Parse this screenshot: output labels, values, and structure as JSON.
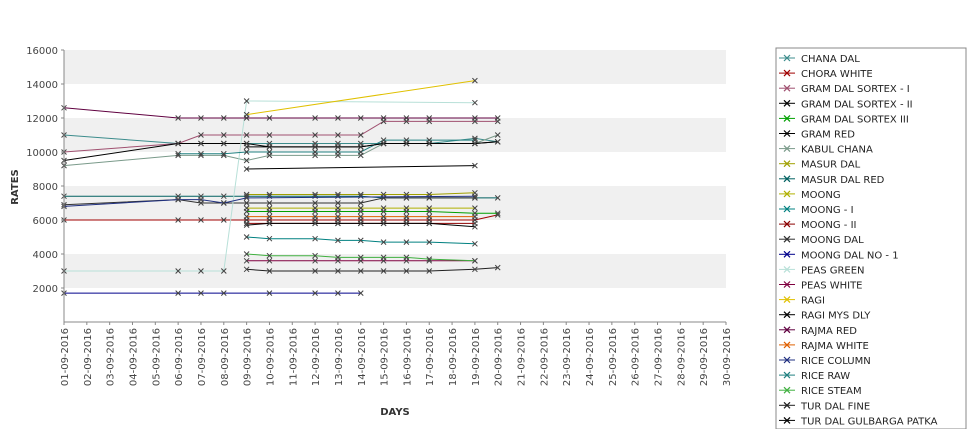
{
  "chart_data": {
    "type": "line",
    "xlabel": "DAYS",
    "ylabel": "RATES",
    "ylim": [
      0,
      16000
    ],
    "yticks": [
      2000,
      4000,
      6000,
      8000,
      10000,
      12000,
      14000,
      16000
    ],
    "grid": "horizontal alternating bands",
    "legend_position": "right",
    "x": [
      "01-09-2016",
      "02-09-2016",
      "03-09-2016",
      "04-09-2016",
      "05-09-2016",
      "06-09-2016",
      "07-09-2016",
      "08-09-2016",
      "09-09-2016",
      "10-09-2016",
      "11-09-2016",
      "12-09-2016",
      "13-09-2016",
      "14-09-2016",
      "15-09-2016",
      "16-09-2016",
      "17-09-2016",
      "18-09-2016",
      "19-09-2016",
      "20-09-2016",
      "21-09-2016",
      "22-09-2016",
      "23-09-2016",
      "24-09-2016",
      "25-09-2016",
      "26-09-2016",
      "27-09-2016",
      "28-09-2016",
      "29-09-2016",
      "30-09-2016"
    ],
    "series": [
      {
        "name": "CHANA DAL",
        "color": "#3c8c8c",
        "points": [
          [
            0,
            11000
          ],
          [
            5,
            10500
          ],
          [
            6,
            10500
          ],
          [
            7,
            10500
          ],
          [
            8,
            10500
          ],
          [
            9,
            10500
          ],
          [
            11,
            10500
          ],
          [
            12,
            10500
          ],
          [
            13,
            10500
          ],
          [
            14,
            10500
          ],
          [
            15,
            10500
          ],
          [
            16,
            10500
          ],
          [
            18,
            10800
          ],
          [
            19,
            10600
          ]
        ]
      },
      {
        "name": "CHORA WHITE",
        "color": "#a00000",
        "points": [
          [
            0,
            6000
          ],
          [
            5,
            6000
          ],
          [
            6,
            6000
          ],
          [
            7,
            6000
          ],
          [
            8,
            6000
          ],
          [
            9,
            6000
          ],
          [
            11,
            6000
          ],
          [
            12,
            6000
          ],
          [
            13,
            6000
          ],
          [
            14,
            6000
          ],
          [
            15,
            6000
          ],
          [
            16,
            6000
          ],
          [
            18,
            6000
          ],
          [
            19,
            6300
          ]
        ]
      },
      {
        "name": "GRAM DAL SORTEX  - I",
        "color": "#a05070",
        "points": [
          [
            0,
            10000
          ],
          [
            5,
            10500
          ],
          [
            6,
            11000
          ],
          [
            7,
            11000
          ],
          [
            8,
            11000
          ],
          [
            9,
            11000
          ],
          [
            11,
            11000
          ],
          [
            12,
            11000
          ],
          [
            13,
            11000
          ],
          [
            14,
            11800
          ],
          [
            15,
            11800
          ],
          [
            16,
            11800
          ],
          [
            18,
            11800
          ],
          [
            19,
            11800
          ]
        ]
      },
      {
        "name": "GRAM DAL SORTEX - II",
        "color": "#000000",
        "points": [
          [
            0,
            9500
          ],
          [
            5,
            10500
          ],
          [
            6,
            10500
          ],
          [
            7,
            10500
          ],
          [
            8,
            10500
          ],
          [
            9,
            10300
          ],
          [
            11,
            10300
          ],
          [
            12,
            10300
          ],
          [
            13,
            10300
          ],
          [
            14,
            10500
          ],
          [
            15,
            10500
          ],
          [
            16,
            10500
          ],
          [
            18,
            10500
          ],
          [
            19,
            10600
          ]
        ]
      },
      {
        "name": "GRAM DAL SORTEX III",
        "color": "#00a000",
        "points": [
          [
            8,
            6500
          ],
          [
            9,
            6500
          ],
          [
            11,
            6500
          ],
          [
            12,
            6500
          ],
          [
            13,
            6500
          ],
          [
            14,
            6500
          ],
          [
            15,
            6500
          ],
          [
            16,
            6500
          ],
          [
            18,
            6400
          ],
          [
            19,
            6400
          ]
        ]
      },
      {
        "name": "GRAM RED",
        "color": "#000000",
        "points": [
          [
            8,
            9000
          ],
          [
            18,
            9200
          ]
        ]
      },
      {
        "name": "KABUL CHANA",
        "color": "#7a9a8a",
        "points": [
          [
            0,
            9200
          ],
          [
            5,
            9800
          ],
          [
            6,
            9800
          ],
          [
            7,
            9800
          ],
          [
            8,
            9500
          ],
          [
            9,
            9800
          ],
          [
            11,
            9800
          ],
          [
            12,
            9800
          ],
          [
            13,
            9800
          ],
          [
            14,
            10500
          ],
          [
            15,
            10500
          ],
          [
            16,
            10500
          ],
          [
            18,
            10500
          ],
          [
            19,
            11000
          ]
        ]
      },
      {
        "name": "MASUR DAL",
        "color": "#a0a000",
        "points": [
          [
            8,
            7500
          ],
          [
            9,
            7500
          ],
          [
            11,
            7500
          ],
          [
            12,
            7500
          ],
          [
            13,
            7500
          ],
          [
            14,
            7500
          ],
          [
            15,
            7500
          ],
          [
            16,
            7500
          ],
          [
            18,
            7600
          ]
        ]
      },
      {
        "name": "MASUR DAL RED",
        "color": "#006060",
        "points": [
          [
            0,
            7400
          ],
          [
            5,
            7400
          ],
          [
            6,
            7400
          ],
          [
            7,
            7400
          ],
          [
            8,
            7400
          ],
          [
            9,
            7400
          ],
          [
            11,
            7400
          ],
          [
            12,
            7400
          ],
          [
            13,
            7400
          ],
          [
            14,
            7300
          ],
          [
            15,
            7300
          ],
          [
            16,
            7300
          ],
          [
            18,
            7300
          ],
          [
            19,
            7300
          ]
        ]
      },
      {
        "name": "MOONG",
        "color": "#b0b000",
        "points": [
          [
            8,
            6700
          ],
          [
            9,
            6700
          ],
          [
            11,
            6700
          ],
          [
            12,
            6700
          ],
          [
            13,
            6700
          ],
          [
            14,
            6700
          ],
          [
            15,
            6700
          ],
          [
            16,
            6700
          ],
          [
            18,
            6700
          ]
        ]
      },
      {
        "name": "MOONG - I",
        "color": "#008080",
        "points": [
          [
            8,
            5000
          ],
          [
            9,
            4900
          ],
          [
            11,
            4900
          ],
          [
            12,
            4800
          ],
          [
            13,
            4800
          ],
          [
            14,
            4700
          ],
          [
            15,
            4700
          ],
          [
            16,
            4700
          ],
          [
            18,
            4600
          ]
        ]
      },
      {
        "name": "MOONG - II",
        "color": "#8b0000",
        "points": [
          [
            8,
            5800
          ],
          [
            9,
            5800
          ],
          [
            11,
            5800
          ],
          [
            12,
            5800
          ],
          [
            13,
            5800
          ],
          [
            14,
            5800
          ],
          [
            15,
            5800
          ],
          [
            16,
            5800
          ],
          [
            18,
            5800
          ]
        ]
      },
      {
        "name": "MOONG DAL",
        "color": "#303030",
        "points": [
          [
            0,
            6900
          ],
          [
            5,
            7200
          ],
          [
            6,
            7000
          ],
          [
            7,
            7000
          ],
          [
            8,
            7000
          ],
          [
            9,
            7000
          ],
          [
            11,
            7000
          ],
          [
            12,
            7000
          ],
          [
            13,
            7000
          ],
          [
            14,
            7300
          ],
          [
            15,
            7300
          ],
          [
            16,
            7300
          ],
          [
            18,
            7300
          ]
        ]
      },
      {
        "name": "MOONG DAL NO - 1",
        "color": "#00008b",
        "points": [
          [
            0,
            1700
          ],
          [
            5,
            1700
          ],
          [
            6,
            1700
          ],
          [
            7,
            1700
          ],
          [
            9,
            1700
          ],
          [
            11,
            1700
          ],
          [
            12,
            1700
          ],
          [
            13,
            1700
          ]
        ]
      },
      {
        "name": "PEAS GREEN",
        "color": "#b8e0d8",
        "points": [
          [
            0,
            3000
          ],
          [
            5,
            3000
          ],
          [
            6,
            3000
          ],
          [
            7,
            3000
          ],
          [
            8,
            13000
          ],
          [
            18,
            12900
          ]
        ]
      },
      {
        "name": "PEAS WHITE",
        "color": "#800040",
        "points": [
          [
            8,
            3600
          ],
          [
            9,
            3600
          ],
          [
            11,
            3600
          ],
          [
            12,
            3600
          ],
          [
            13,
            3600
          ],
          [
            14,
            3600
          ],
          [
            15,
            3600
          ],
          [
            16,
            3600
          ],
          [
            18,
            3600
          ]
        ]
      },
      {
        "name": "RAGI",
        "color": "#e0c000",
        "points": [
          [
            8,
            12200
          ],
          [
            18,
            14200
          ]
        ]
      },
      {
        "name": "RAGI MYS DLY",
        "color": "#000000",
        "points": [
          [
            8,
            5700
          ],
          [
            9,
            5800
          ],
          [
            11,
            5800
          ],
          [
            12,
            5800
          ],
          [
            13,
            5800
          ],
          [
            14,
            5800
          ],
          [
            15,
            5800
          ],
          [
            16,
            5800
          ],
          [
            18,
            5600
          ]
        ]
      },
      {
        "name": "RAJMA RED",
        "color": "#600040",
        "points": [
          [
            0,
            12600
          ],
          [
            5,
            12000
          ],
          [
            6,
            12000
          ],
          [
            7,
            12000
          ],
          [
            8,
            12000
          ],
          [
            9,
            12000
          ],
          [
            11,
            12000
          ],
          [
            12,
            12000
          ],
          [
            13,
            12000
          ],
          [
            14,
            12000
          ],
          [
            15,
            12000
          ],
          [
            16,
            12000
          ],
          [
            18,
            12000
          ],
          [
            19,
            12000
          ]
        ]
      },
      {
        "name": "RAJMA WHITE",
        "color": "#e06000",
        "points": [
          [
            8,
            6200
          ],
          [
            9,
            6200
          ],
          [
            11,
            6200
          ],
          [
            12,
            6200
          ],
          [
            13,
            6200
          ],
          [
            14,
            6200
          ],
          [
            15,
            6200
          ],
          [
            16,
            6200
          ],
          [
            18,
            6200
          ]
        ]
      },
      {
        "name": "RICE COLUMN",
        "color": "#203080",
        "points": [
          [
            0,
            6800
          ],
          [
            5,
            7200
          ],
          [
            6,
            7200
          ],
          [
            7,
            7000
          ],
          [
            8,
            7300
          ],
          [
            18,
            7400
          ]
        ]
      },
      {
        "name": "RICE RAW",
        "color": "#208080",
        "points": [
          [
            5,
            9900
          ],
          [
            6,
            9900
          ],
          [
            7,
            9900
          ],
          [
            8,
            10000
          ],
          [
            9,
            10000
          ],
          [
            11,
            10000
          ],
          [
            12,
            10000
          ],
          [
            13,
            10000
          ],
          [
            14,
            10700
          ],
          [
            15,
            10700
          ],
          [
            16,
            10700
          ],
          [
            18,
            10700
          ]
        ]
      },
      {
        "name": "RICE STEAM",
        "color": "#40b040",
        "points": [
          [
            8,
            4000
          ],
          [
            9,
            3900
          ],
          [
            11,
            3900
          ],
          [
            12,
            3800
          ],
          [
            13,
            3800
          ],
          [
            14,
            3800
          ],
          [
            15,
            3800
          ],
          [
            16,
            3700
          ],
          [
            18,
            3600
          ]
        ]
      },
      {
        "name": "TUR DAL FINE",
        "color": "#202020",
        "points": [
          [
            8,
            3100
          ],
          [
            9,
            3000
          ],
          [
            11,
            3000
          ],
          [
            12,
            3000
          ],
          [
            13,
            3000
          ],
          [
            14,
            3000
          ],
          [
            15,
            3000
          ],
          [
            16,
            3000
          ],
          [
            18,
            3100
          ],
          [
            19,
            3200
          ]
        ]
      },
      {
        "name": "TUR DAL GULBARGA PATKA",
        "color": "#000000",
        "points": [
          [
            8,
            10300
          ],
          [
            9,
            10300
          ],
          [
            11,
            10300
          ],
          [
            12,
            10300
          ],
          [
            13,
            10300
          ],
          [
            14,
            10500
          ],
          [
            15,
            10500
          ],
          [
            16,
            10500
          ],
          [
            18,
            10500
          ],
          [
            19,
            10600
          ]
        ]
      }
    ]
  }
}
